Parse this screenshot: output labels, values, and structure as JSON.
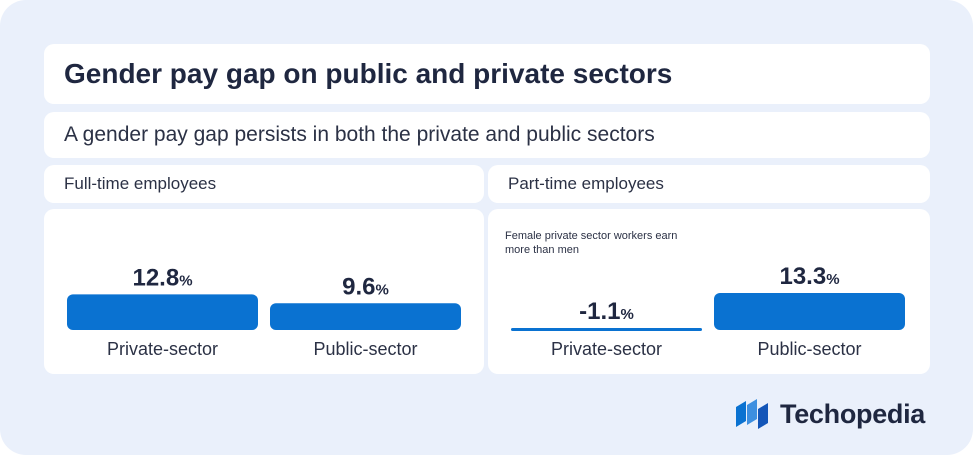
{
  "header": {
    "title": "Gender pay gap on public and private sectors",
    "subtitle": "A gender pay gap persists in both the private and public sectors"
  },
  "panels": {
    "full_time": {
      "label": "Full-time employees"
    },
    "part_time": {
      "label": "Part-time employees",
      "note": "Female private sector workers earn more than men"
    }
  },
  "brand": {
    "name": "Techopedia"
  },
  "colors": {
    "bar": "#0a72d1",
    "text": "#1f2740"
  },
  "chart_data": [
    {
      "type": "bar",
      "title": "Full-time employees",
      "categories": [
        "Private-sector",
        "Public-sector"
      ],
      "values": [
        12.8,
        9.6
      ],
      "value_labels": [
        "12.8",
        "9.6"
      ],
      "unit": "%",
      "color": "#0a72d1"
    },
    {
      "type": "bar",
      "title": "Part-time employees",
      "categories": [
        "Private-sector",
        "Public-sector"
      ],
      "values": [
        -1.1,
        13.3
      ],
      "value_labels": [
        "-1.1",
        "13.3"
      ],
      "unit": "%",
      "color": "#0a72d1"
    }
  ]
}
